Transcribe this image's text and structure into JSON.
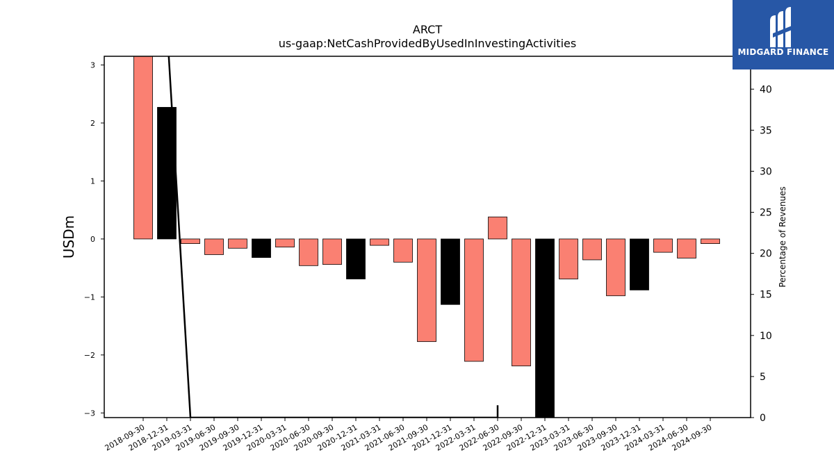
{
  "brand": {
    "name": "MIDGARD FINANCE",
    "logo_icon": "midgard-m-logo-icon",
    "background": "#2757a6"
  },
  "chart_data": {
    "type": "bar",
    "title": "ARCT",
    "subtitle": "us-gaap:NetCashProvidedByUsedInInvestingActivities",
    "ylabel": "USDm",
    "y2label": "Percentage of Revenues",
    "ylim": [
      -3.08,
      3.15
    ],
    "y2lim": [
      0,
      44.0
    ],
    "yticks": [
      -3,
      -2,
      -1,
      0,
      1,
      2,
      3
    ],
    "y2ticks": [
      0,
      5,
      10,
      15,
      20,
      25,
      30,
      35,
      40
    ],
    "categories": [
      "2018-09-30",
      "2018-12-31",
      "2019-03-31",
      "2019-06-30",
      "2019-09-30",
      "2019-12-31",
      "2020-03-31",
      "2020-06-30",
      "2020-09-30",
      "2020-12-31",
      "2021-03-31",
      "2021-06-30",
      "2021-09-30",
      "2021-12-31",
      "2022-03-31",
      "2022-06-30",
      "2022-09-30",
      "2022-12-31",
      "2023-03-31",
      "2023-06-30",
      "2023-09-30",
      "2023-12-31",
      "2024-03-31",
      "2024-06-30",
      "2024-09-30"
    ],
    "series": [
      {
        "values": [
          3.5,
          2.27,
          -0.08,
          -0.27,
          -0.16,
          -0.32,
          -0.14,
          -0.46,
          -0.44,
          -0.69,
          -0.11,
          -0.4,
          -1.77,
          -1.13,
          -2.11,
          0.38,
          -2.19,
          -3.5,
          -0.69,
          -0.36,
          -0.98,
          -0.88,
          -0.23,
          -0.33,
          -0.08
        ],
        "colors": [
          "#fa8072",
          "#000000",
          "#fa8072",
          "#fa8072",
          "#fa8072",
          "#000000",
          "#fa8072",
          "#fa8072",
          "#fa8072",
          "#000000",
          "#fa8072",
          "#fa8072",
          "#fa8072",
          "#000000",
          "#fa8072",
          "#fa8072",
          "#fa8072",
          "#000000",
          "#fa8072",
          "#fa8072",
          "#fa8072",
          "#000000",
          "#fa8072",
          "#fa8072",
          "#fa8072"
        ]
      },
      {
        "type": "line",
        "axis": "right",
        "color": "#000000",
        "points": [
          {
            "x": "2018-12-31",
            "y": 48.0
          },
          {
            "x": "2019-03-31",
            "y": 0.0
          },
          {
            "x": "2022-06-30",
            "y": 0.0
          },
          {
            "x": "2022-06-30",
            "y": 1.5
          },
          {
            "x": "2022-06-30",
            "y": 0.0
          }
        ]
      }
    ],
    "colors": {
      "annual": "#000000",
      "quarterly": "#fa8072"
    }
  }
}
